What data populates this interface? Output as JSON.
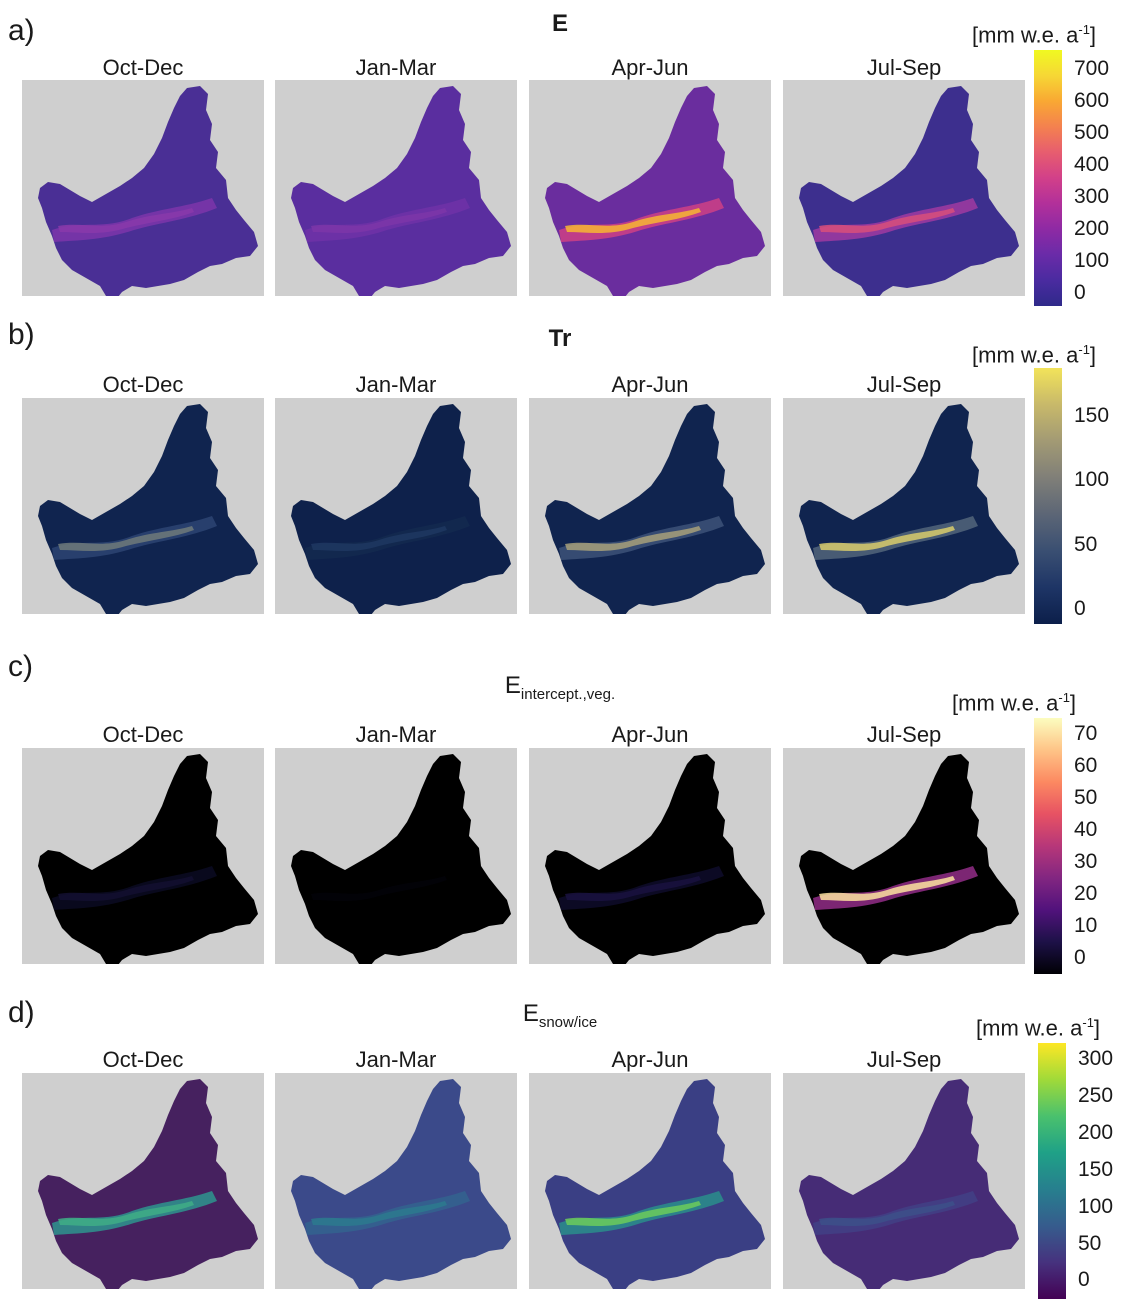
{
  "seasons": [
    "Oct-Dec",
    "Jan-Mar",
    "Apr-Jun",
    "Jul-Sep"
  ],
  "rows": [
    {
      "letter": "a)",
      "title": "E",
      "title_sub": "",
      "units": "[mm w.e. a",
      "units_sup": "-1",
      "units_end": "]",
      "ticks": [
        "700",
        "600",
        "500",
        "400",
        "300",
        "200",
        "100",
        "0"
      ],
      "colormap": [
        "#2f2a8a",
        "#4a2ba0",
        "#6a2ba8",
        "#8e2aa4",
        "#b2309a",
        "#d24089",
        "#e75d6f",
        "#f4814f",
        "#f9a833",
        "#f6d735",
        "#f0f921"
      ],
      "panel_colors": [
        {
          "base": "#4a2f95",
          "accent": "#7a35a8",
          "hot": "#8a3aaa"
        },
        {
          "base": "#5a2e9f",
          "accent": "#6e32a6",
          "hot": "#7d36a8"
        },
        {
          "base": "#6a2d9e",
          "accent": "#c93f86",
          "hot": "#f7b632"
        },
        {
          "base": "#3d2f8e",
          "accent": "#9a3aa0",
          "hot": "#d84f7a"
        }
      ]
    },
    {
      "letter": "b)",
      "title": "Tr",
      "title_sub": "",
      "units": "[mm w.e. a",
      "units_sup": "-1",
      "units_end": "]",
      "ticks": [
        "150",
        "100",
        "50",
        "0"
      ],
      "colormap": [
        "#0c1f4a",
        "#1e3566",
        "#3a4f72",
        "#5c6676",
        "#807f78",
        "#a29a74",
        "#c8b96a",
        "#f2e35a"
      ],
      "panel_colors": [
        {
          "base": "#10244f",
          "accent": "#2b4270",
          "hot": "#6f7a7a"
        },
        {
          "base": "#0e214b",
          "accent": "#13294f",
          "hot": "#1f3762"
        },
        {
          "base": "#10244f",
          "accent": "#3b5076",
          "hot": "#a7a07a"
        },
        {
          "base": "#10244f",
          "accent": "#4f6278",
          "hot": "#d9cd6c"
        }
      ]
    },
    {
      "letter": "c)",
      "title": "E",
      "title_sub": "intercept.,veg.",
      "units": "[mm w.e. a",
      "units_sup": "-1",
      "units_end": "]",
      "ticks": [
        "70",
        "60",
        "50",
        "40",
        "30",
        "20",
        "10",
        "0"
      ],
      "colormap": [
        "#000004",
        "#1d1147",
        "#51127c",
        "#822681",
        "#b73779",
        "#e75263",
        "#fc8961",
        "#fec487",
        "#fcfdbf"
      ],
      "panel_colors": [
        {
          "base": "#000000",
          "accent": "#0a0a20",
          "hot": "#130f30"
        },
        {
          "base": "#000000",
          "accent": "#000000",
          "hot": "#020208"
        },
        {
          "base": "#000000",
          "accent": "#0d0b28",
          "hot": "#1a1240"
        },
        {
          "base": "#000000",
          "accent": "#8a2a80",
          "hot": "#fde3a0"
        }
      ]
    },
    {
      "letter": "d)",
      "title": "E",
      "title_sub": "snow/ice",
      "units": "[mm w.e. a",
      "units_sup": "-1",
      "units_end": "]",
      "ticks": [
        "300",
        "250",
        "200",
        "150",
        "100",
        "50",
        "0"
      ],
      "colormap": [
        "#440154",
        "#46327e",
        "#365c8d",
        "#277f8e",
        "#1fa187",
        "#4ac16d",
        "#a0da39",
        "#fde725"
      ],
      "panel_colors": [
        {
          "base": "#46215f",
          "accent": "#2f8e8c",
          "hot": "#3fae86"
        },
        {
          "base": "#3b4a8a",
          "accent": "#34628e",
          "hot": "#2d7a8e"
        },
        {
          "base": "#3a3f84",
          "accent": "#2b8a8b",
          "hot": "#6ccc5a"
        },
        {
          "base": "#462c76",
          "accent": "#413f85",
          "hot": "#3c5089"
        }
      ]
    }
  ]
}
